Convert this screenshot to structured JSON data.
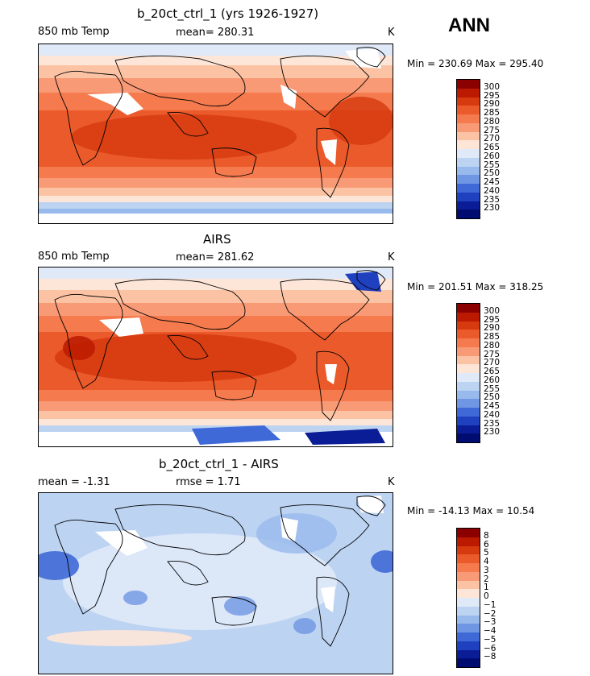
{
  "season": "ANN",
  "units": "K",
  "panels": [
    {
      "title": "b_20ct_ctrl_1 (yrs 1926-1927)",
      "left_label": "850 mb Temp",
      "center_label": "mean= 280.31",
      "minmax": "Min = 230.69 Max = 295.40"
    },
    {
      "title": "AIRS",
      "left_label": "850 mb Temp",
      "center_label": "mean= 281.62",
      "minmax": "Min = 201.51 Max = 318.25"
    },
    {
      "title": "b_20ct_ctrl_1 - AIRS",
      "left_label": "mean =   -1.31",
      "center_label": "rmse =    1.71",
      "minmax": "Min = -14.13 Max =  10.54"
    }
  ],
  "colorbar_abs": {
    "labels": [
      "300",
      "295",
      "290",
      "285",
      "280",
      "275",
      "270",
      "265",
      "260",
      "255",
      "250",
      "245",
      "240",
      "235",
      "230"
    ],
    "colors": [
      "#8b0000",
      "#bb1a00",
      "#d63a0f",
      "#ea5a2a",
      "#f57a4e",
      "#f99a76",
      "#fbc3a4",
      "#fde6d8",
      "#dfe9f8",
      "#bcd3f2",
      "#98b9ec",
      "#6f96e2",
      "#3f69d6",
      "#1f40bf",
      "#0a1c96",
      "#000c70"
    ]
  },
  "colorbar_diff": {
    "labels": [
      "8",
      "6",
      "5",
      "4",
      "3",
      "2",
      "1",
      "0",
      "−1",
      "−2",
      "−3",
      "−4",
      "−5",
      "−6",
      "−8"
    ],
    "colors": [
      "#8b0000",
      "#bb1a00",
      "#d63a0f",
      "#ea5a2a",
      "#f57a4e",
      "#f99a76",
      "#fbc3a4",
      "#fde6d8",
      "#dfe9f8",
      "#bcd3f2",
      "#98b9ec",
      "#6f96e2",
      "#3f69d6",
      "#1f40bf",
      "#0a1c96",
      "#000c70"
    ]
  }
}
